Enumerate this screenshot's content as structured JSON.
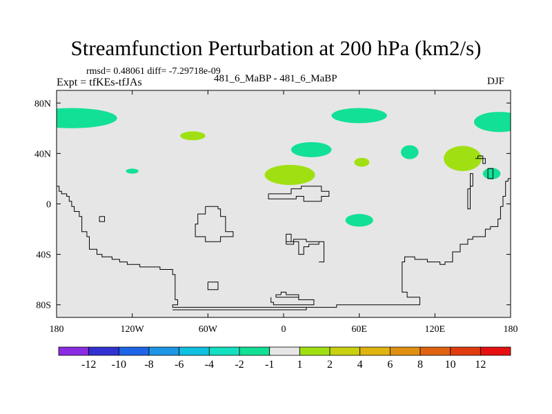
{
  "chart_data": {
    "type": "map-contour",
    "title": "Streamfunction Perturbation at 200 hPa (km2/s)",
    "stats_text": "rmsd= 0.48061  diff= -7.29718e-09",
    "subtitle_left": "Expt = tfKEs-tfJAs",
    "subtitle_center": "481_6_MaBP - 481_6_MaBP",
    "subtitle_right": "DJF",
    "projection": "cylindrical equidistant",
    "lon_range": [
      -180,
      180
    ],
    "lat_range": [
      -90,
      90
    ],
    "x_ticks": [
      {
        "value": -180,
        "label": "180"
      },
      {
        "value": -120,
        "label": "120W"
      },
      {
        "value": -60,
        "label": "60W"
      },
      {
        "value": 0,
        "label": "0"
      },
      {
        "value": 60,
        "label": "60E"
      },
      {
        "value": 120,
        "label": "120E"
      },
      {
        "value": 180,
        "label": "180"
      }
    ],
    "y_ticks": [
      {
        "value": 80,
        "label": "80N"
      },
      {
        "value": 40,
        "label": "40N"
      },
      {
        "value": 0,
        "label": "0"
      },
      {
        "value": -40,
        "label": "40S"
      },
      {
        "value": -80,
        "label": "80S"
      }
    ],
    "background_color": "#e6e6e6",
    "colorbar": {
      "colors": [
        "#8a2be2",
        "#3232d2",
        "#1e64e6",
        "#1e96e6",
        "#10c0e0",
        "#12e0c0",
        "#12e096",
        "#e6e6e6",
        "#a0e012",
        "#c8d010",
        "#e0b410",
        "#e09010",
        "#e06410",
        "#e03c10",
        "#e61010"
      ],
      "labels": [
        "-12",
        "-10",
        "-8",
        "-6",
        "-4",
        "-2",
        "-1",
        "1",
        "2",
        "4",
        "6",
        "8",
        "10",
        "12"
      ]
    },
    "anomaly_regions": [
      {
        "lon": -168,
        "lat": 68,
        "rlon": 36,
        "rlat": 8,
        "color": "#12e096"
      },
      {
        "lon": 171,
        "lat": 65,
        "rlon": 20,
        "rlat": 8,
        "color": "#12e096"
      },
      {
        "lon": 60,
        "lat": 70,
        "rlon": 22,
        "rlat": 6,
        "color": "#12e096"
      },
      {
        "lon": 22,
        "lat": 43,
        "rlon": 16,
        "rlat": 6,
        "color": "#12e096"
      },
      {
        "lon": 100,
        "lat": 41,
        "rlon": 7,
        "rlat": 5.5,
        "color": "#12e096"
      },
      {
        "lon": 60,
        "lat": -13,
        "rlon": 11,
        "rlat": 5,
        "color": "#12e096"
      },
      {
        "lon": 165,
        "lat": 24,
        "rlon": 7,
        "rlat": 4.5,
        "color": "#12e096"
      },
      {
        "lon": -120,
        "lat": 26,
        "rlon": 5,
        "rlat": 2,
        "color": "#12e096"
      },
      {
        "lon": -72,
        "lat": 54,
        "rlon": 10,
        "rlat": 3.5,
        "color": "#a0e012"
      },
      {
        "lon": 5,
        "lat": 23,
        "rlon": 20,
        "rlat": 8,
        "color": "#a0e012"
      },
      {
        "lon": 62,
        "lat": 33,
        "rlon": 6,
        "rlat": 3.5,
        "color": "#a0e012"
      },
      {
        "lon": 142,
        "lat": 36,
        "rlon": 15,
        "rlat": 10,
        "color": "#a0e012"
      }
    ],
    "coastlines": [
      [
        [
          -180,
          14
        ],
        [
          -178,
          14
        ],
        [
          -178,
          10
        ],
        [
          -176,
          10
        ],
        [
          -176,
          8
        ],
        [
          -172,
          8
        ],
        [
          -172,
          6
        ],
        [
          -170,
          6
        ],
        [
          -170,
          2
        ],
        [
          -168,
          2
        ],
        [
          -168,
          -2
        ],
        [
          -166,
          -2
        ],
        [
          -166,
          -6
        ],
        [
          -162,
          -6
        ],
        [
          -162,
          -10
        ],
        [
          -160,
          -10
        ],
        [
          -160,
          -22
        ],
        [
          -156,
          -22
        ],
        [
          -156,
          -26
        ],
        [
          -154,
          -26
        ],
        [
          -154,
          -36
        ],
        [
          -148,
          -36
        ],
        [
          -148,
          -40
        ],
        [
          -144,
          -40
        ],
        [
          -144,
          -42
        ],
        [
          -136,
          -42
        ],
        [
          -136,
          -44
        ],
        [
          -130,
          -44
        ],
        [
          -130,
          -46
        ],
        [
          -124,
          -46
        ],
        [
          -124,
          -48
        ],
        [
          -114,
          -48
        ],
        [
          -114,
          -50
        ],
        [
          -98,
          -50
        ],
        [
          -98,
          -52
        ],
        [
          -88,
          -52
        ],
        [
          -88,
          -56
        ],
        [
          -86,
          -56
        ],
        [
          -86,
          -76
        ],
        [
          -84,
          -76
        ],
        [
          -84,
          -80
        ],
        [
          -88,
          -80
        ],
        [
          -88,
          -82
        ],
        [
          18,
          -82
        ],
        [
          18,
          -84
        ],
        [
          -88,
          -84
        ]
      ],
      [
        [
          180,
          20
        ],
        [
          178,
          20
        ],
        [
          178,
          18
        ],
        [
          176,
          18
        ],
        [
          176,
          6
        ],
        [
          174,
          6
        ],
        [
          174,
          -2
        ],
        [
          172,
          -2
        ],
        [
          172,
          -12
        ],
        [
          170,
          -12
        ],
        [
          170,
          -18
        ],
        [
          164,
          -18
        ],
        [
          164,
          -20
        ],
        [
          160,
          -20
        ],
        [
          160,
          -26
        ],
        [
          150,
          -26
        ],
        [
          150,
          -28
        ],
        [
          146,
          -28
        ],
        [
          146,
          -32
        ],
        [
          140,
          -32
        ],
        [
          140,
          -38
        ],
        [
          134,
          -38
        ],
        [
          134,
          -46
        ],
        [
          128,
          -46
        ],
        [
          128,
          -48
        ],
        [
          124,
          -48
        ],
        [
          124,
          -46
        ],
        [
          114,
          -46
        ],
        [
          114,
          -44
        ],
        [
          104,
          -44
        ],
        [
          104,
          -42
        ],
        [
          96,
          -42
        ],
        [
          96,
          -46
        ],
        [
          94,
          -46
        ],
        [
          94,
          -70
        ],
        [
          98,
          -70
        ],
        [
          98,
          -74
        ],
        [
          108,
          -74
        ],
        [
          108,
          -80
        ],
        [
          42,
          -80
        ],
        [
          42,
          -82
        ],
        [
          18,
          -82
        ]
      ],
      [
        [
          164,
          28
        ],
        [
          166,
          28
        ],
        [
          166,
          20
        ],
        [
          162,
          20
        ],
        [
          162,
          28
        ],
        [
          164,
          28
        ]
      ],
      [
        [
          146,
          12
        ],
        [
          148,
          12
        ],
        [
          148,
          24
        ],
        [
          150,
          24
        ],
        [
          150,
          14
        ],
        [
          148,
          14
        ],
        [
          148,
          -4
        ],
        [
          146,
          -4
        ],
        [
          146,
          12
        ]
      ],
      [
        [
          152,
          36
        ],
        [
          160,
          36
        ],
        [
          160,
          32
        ],
        [
          158,
          32
        ],
        [
          158,
          38
        ],
        [
          154,
          38
        ],
        [
          154,
          36
        ],
        [
          152,
          36
        ]
      ],
      [
        [
          -12,
          8
        ],
        [
          -12,
          4
        ],
        [
          10,
          4
        ],
        [
          10,
          6
        ],
        [
          16,
          6
        ],
        [
          16,
          2
        ],
        [
          30,
          2
        ],
        [
          30,
          6
        ],
        [
          36,
          6
        ],
        [
          36,
          10
        ],
        [
          30,
          10
        ],
        [
          30,
          14
        ],
        [
          14,
          14
        ],
        [
          14,
          12
        ],
        [
          6,
          12
        ],
        [
          6,
          8
        ],
        [
          -12,
          8
        ]
      ],
      [
        [
          -62,
          -2
        ],
        [
          -62,
          -8
        ],
        [
          -68,
          -8
        ],
        [
          -68,
          -16
        ],
        [
          -70,
          -16
        ],
        [
          -70,
          -26
        ],
        [
          -62,
          -26
        ],
        [
          -62,
          -30
        ],
        [
          -50,
          -30
        ],
        [
          -50,
          -26
        ],
        [
          -40,
          -26
        ],
        [
          -40,
          -22
        ],
        [
          -46,
          -22
        ],
        [
          -46,
          -10
        ],
        [
          -50,
          -10
        ],
        [
          -50,
          -4
        ],
        [
          -52,
          -4
        ],
        [
          -52,
          -2
        ],
        [
          -62,
          -2
        ]
      ],
      [
        [
          -146,
          -10
        ],
        [
          -146,
          -14
        ],
        [
          -142,
          -14
        ],
        [
          -142,
          -10
        ],
        [
          -146,
          -10
        ]
      ],
      [
        [
          -60,
          -62
        ],
        [
          -60,
          -68
        ],
        [
          -52,
          -68
        ],
        [
          -52,
          -62
        ],
        [
          -60,
          -62
        ]
      ],
      [
        [
          2,
          -32
        ],
        [
          2,
          -30
        ],
        [
          12,
          -30
        ],
        [
          12,
          -40
        ],
        [
          16,
          -40
        ],
        [
          16,
          -34
        ],
        [
          20,
          -34
        ],
        [
          20,
          -32
        ],
        [
          28,
          -32
        ],
        [
          28,
          -30
        ],
        [
          18,
          -30
        ],
        [
          18,
          -28
        ],
        [
          8,
          -28
        ],
        [
          8,
          -32
        ],
        [
          2,
          -32
        ]
      ],
      [
        [
          2,
          -30
        ],
        [
          2,
          -24
        ],
        [
          6,
          -24
        ],
        [
          6,
          -30
        ]
      ],
      [
        [
          28,
          -30
        ],
        [
          32,
          -30
        ],
        [
          32,
          -46
        ],
        [
          28,
          -46
        ]
      ],
      [
        [
          -2,
          -72
        ],
        [
          -2,
          -70
        ],
        [
          2,
          -70
        ],
        [
          2,
          -72
        ],
        [
          12,
          -72
        ],
        [
          12,
          -74
        ],
        [
          -6,
          -74
        ],
        [
          -6,
          -72
        ],
        [
          -2,
          -72
        ]
      ],
      [
        [
          -10,
          -74
        ],
        [
          -10,
          -78
        ],
        [
          -8,
          -78
        ],
        [
          -8,
          -80
        ],
        [
          24,
          -80
        ],
        [
          24,
          -76
        ],
        [
          12,
          -76
        ],
        [
          12,
          -74
        ]
      ]
    ]
  }
}
